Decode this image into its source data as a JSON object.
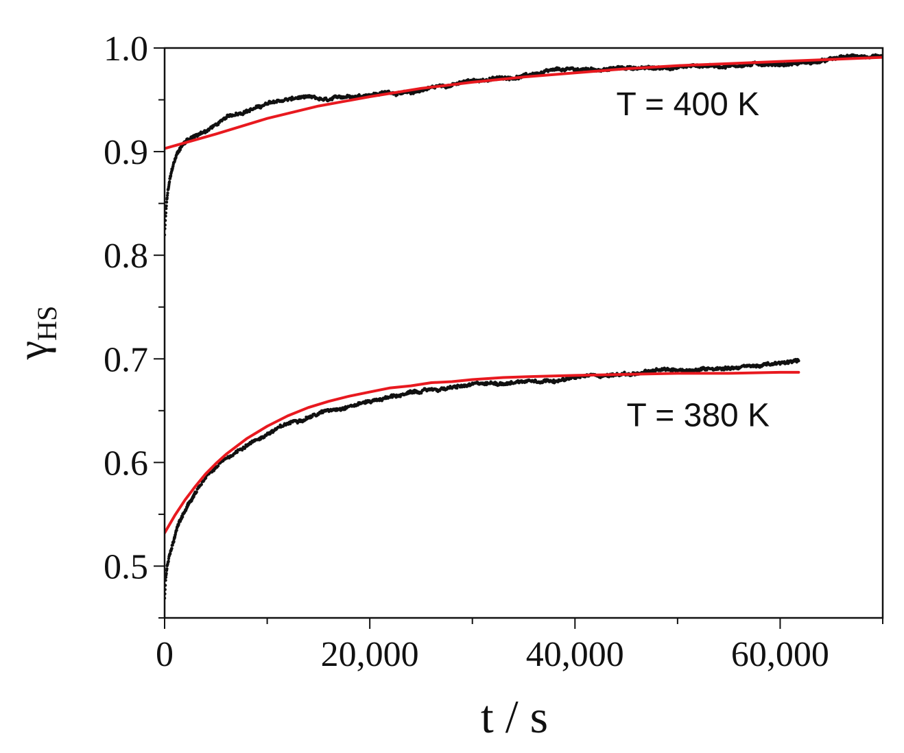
{
  "chart_data": {
    "type": "scatter",
    "title": "",
    "xlabel": "t / s",
    "ylabel": {
      "symbol": "γ",
      "subscript": "HS"
    },
    "xlim": [
      0,
      70000
    ],
    "ylim": [
      0.45,
      1.0
    ],
    "x_ticks": [
      0,
      20000,
      40000,
      60000
    ],
    "x_tick_labels": [
      "0",
      "20,000",
      "40,000",
      "60,000"
    ],
    "x_minor_step": 10000,
    "y_ticks": [
      0.5,
      0.6,
      0.7,
      0.8,
      0.9,
      1.0
    ],
    "y_tick_labels": [
      "0.5",
      "0.6",
      "0.7",
      "0.8",
      "0.9",
      "1.0"
    ],
    "y_minor_step": 0.05,
    "grid": false,
    "annotations": [
      {
        "text": "T = 400 K",
        "x": 51000,
        "y": 0.935
      },
      {
        "text": "T = 380 K",
        "x": 52000,
        "y": 0.635
      }
    ],
    "series": [
      {
        "kind": "data",
        "color": "#111111",
        "x": [
          0,
          150,
          300,
          500,
          800,
          1200,
          1600,
          2200,
          3000,
          4000,
          5000,
          6000,
          8000,
          10000,
          12000,
          13500,
          16000,
          18000,
          20000,
          22000,
          24000,
          26000,
          28000,
          30000,
          32000,
          34000,
          36000,
          38000,
          40000,
          42000,
          44000,
          46000,
          48000,
          50000,
          52000,
          54000,
          56000,
          58000,
          60000,
          62000,
          64000,
          66000,
          68000,
          70000
        ],
        "y": [
          0.82,
          0.845,
          0.86,
          0.872,
          0.885,
          0.897,
          0.905,
          0.912,
          0.915,
          0.92,
          0.926,
          0.932,
          0.94,
          0.946,
          0.95,
          0.952,
          0.948,
          0.953,
          0.956,
          0.958,
          0.956,
          0.962,
          0.965,
          0.968,
          0.97,
          0.972,
          0.975,
          0.977,
          0.978,
          0.979,
          0.98,
          0.981,
          0.98,
          0.982,
          0.983,
          0.983,
          0.984,
          0.985,
          0.985,
          0.986,
          0.987,
          0.99,
          0.992,
          0.989
        ]
      },
      {
        "kind": "fit",
        "color": "#e8191f",
        "x": [
          0,
          5000,
          10000,
          15000,
          20000,
          25000,
          30000,
          35000,
          40000,
          45000,
          50000,
          55000,
          60000,
          65000,
          70000
        ],
        "y": [
          0.903,
          0.917,
          0.932,
          0.944,
          0.953,
          0.961,
          0.967,
          0.972,
          0.976,
          0.98,
          0.983,
          0.985,
          0.987,
          0.989,
          0.991
        ]
      },
      {
        "kind": "data",
        "color": "#111111",
        "x": [
          0,
          100,
          250,
          500,
          800,
          1200,
          1600,
          2200,
          3000,
          4000,
          5000,
          6000,
          8000,
          10000,
          12000,
          14000,
          16000,
          18000,
          20000,
          22000,
          24000,
          26000,
          28000,
          30000,
          32000,
          34000,
          36000,
          38000,
          40000,
          42000,
          44000,
          46000,
          48000,
          50000,
          52000,
          54000,
          56000,
          58000,
          60000,
          61800
        ],
        "y": [
          0.47,
          0.485,
          0.5,
          0.51,
          0.52,
          0.535,
          0.545,
          0.556,
          0.57,
          0.584,
          0.594,
          0.603,
          0.617,
          0.628,
          0.637,
          0.645,
          0.651,
          0.656,
          0.66,
          0.664,
          0.667,
          0.67,
          0.672,
          0.674,
          0.676,
          0.678,
          0.68,
          0.681,
          0.682,
          0.684,
          0.685,
          0.686,
          0.688,
          0.689,
          0.69,
          0.692,
          0.693,
          0.694,
          0.695,
          0.697
        ]
      },
      {
        "kind": "fit",
        "color": "#e8191f",
        "x": [
          0,
          1000,
          2000,
          3000,
          4000,
          5000,
          6000,
          8000,
          10000,
          12000,
          14000,
          16000,
          18000,
          20000,
          22000,
          24000,
          26000,
          28000,
          30000,
          33000,
          36000,
          40000,
          45000,
          50000,
          55000,
          60000,
          61800
        ],
        "y": [
          0.532,
          0.549,
          0.564,
          0.577,
          0.589,
          0.599,
          0.608,
          0.623,
          0.635,
          0.645,
          0.653,
          0.659,
          0.664,
          0.668,
          0.672,
          0.674,
          0.677,
          0.678,
          0.68,
          0.682,
          0.683,
          0.684,
          0.685,
          0.686,
          0.686,
          0.687,
          0.687
        ]
      }
    ]
  }
}
